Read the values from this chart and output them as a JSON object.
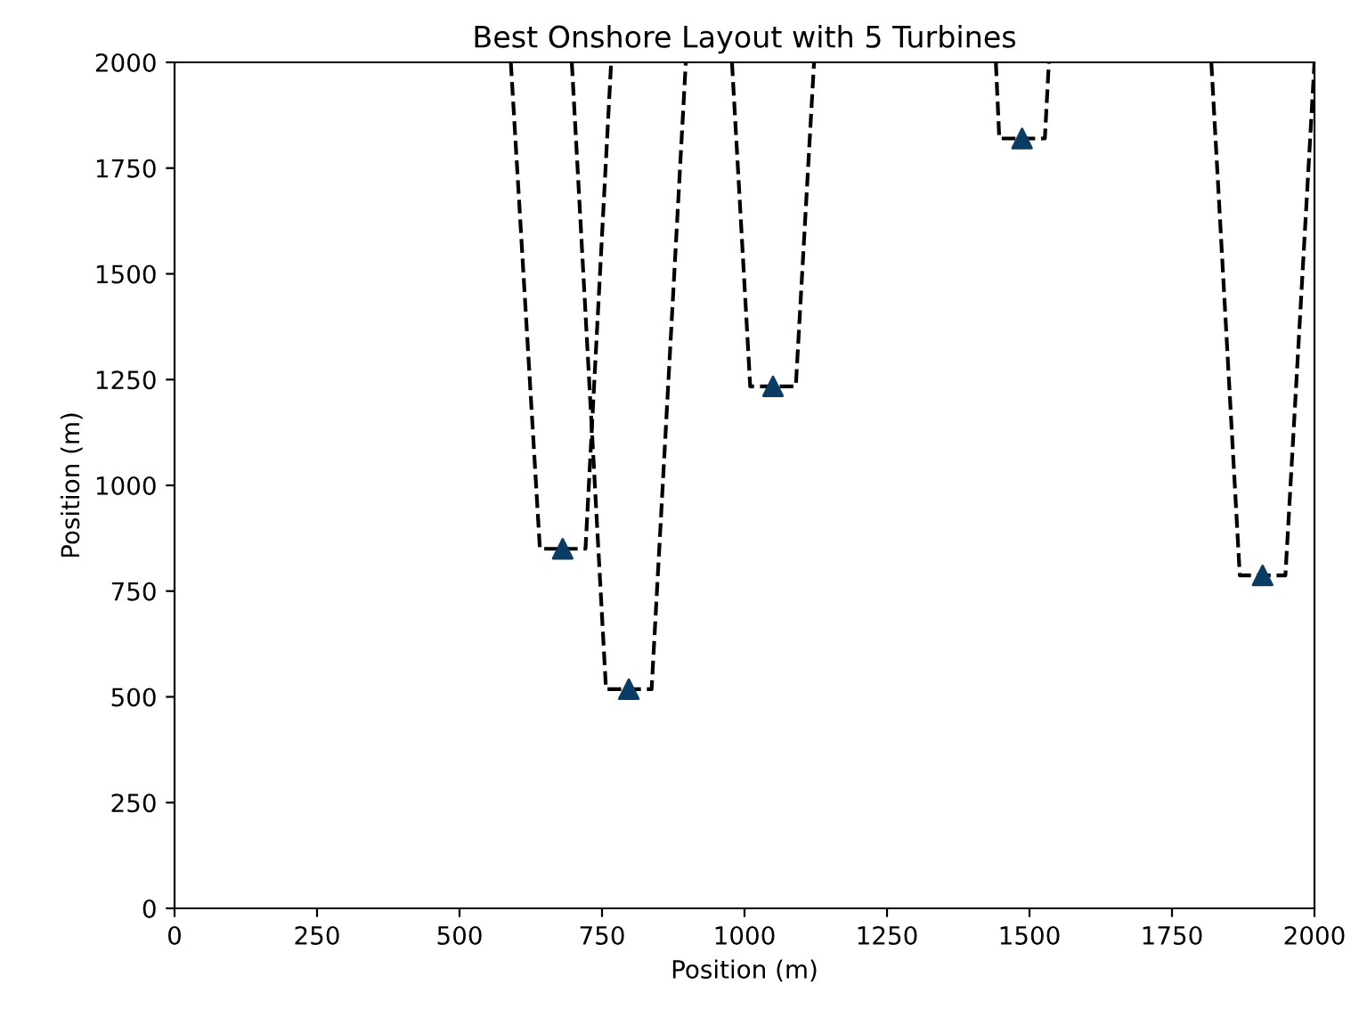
{
  "chart_data": {
    "type": "line",
    "title": "Best Onshore Layout with 5 Turbines",
    "xlabel": "Position (m)",
    "ylabel": "Position (m)",
    "xlim": [
      0,
      2000
    ],
    "ylim": [
      0,
      2000
    ],
    "xticks": [
      0,
      250,
      500,
      750,
      1000,
      1250,
      1500,
      1750,
      2000
    ],
    "yticks": [
      0,
      250,
      500,
      750,
      1000,
      1250,
      1500,
      1750,
      2000
    ],
    "grid": false,
    "series": [
      {
        "color": "#000000",
        "line_style": "dashed",
        "marker": "none",
        "x": [
          590,
          641,
          721,
          766
        ],
        "values": [
          2000,
          850,
          850,
          2000
        ]
      },
      {
        "color": "#000000",
        "line_style": "dashed",
        "marker": "none",
        "x": [
          697,
          757,
          837,
          897
        ],
        "values": [
          2000,
          518,
          518,
          2000
        ]
      },
      {
        "color": "#000000",
        "line_style": "dashed",
        "marker": "none",
        "x": [
          978,
          1010,
          1090,
          1122
        ],
        "values": [
          2000,
          1234,
          1234,
          2000
        ]
      },
      {
        "color": "#000000",
        "line_style": "dashed",
        "marker": "none",
        "x": [
          1441,
          1447,
          1527,
          1534
        ],
        "values": [
          2000,
          1820,
          1820,
          2000
        ]
      },
      {
        "color": "#000000",
        "line_style": "dashed",
        "marker": "none",
        "x": [
          1819,
          1869,
          1949,
          2000
        ],
        "values": [
          2000,
          787,
          787,
          2000
        ]
      },
      {
        "type": "scatter",
        "color": "#0b3d64",
        "marker": "triangle",
        "x": [
          681,
          797,
          1050,
          1487,
          1909
        ],
        "values": [
          850,
          518,
          1234,
          1820,
          787
        ]
      }
    ]
  }
}
